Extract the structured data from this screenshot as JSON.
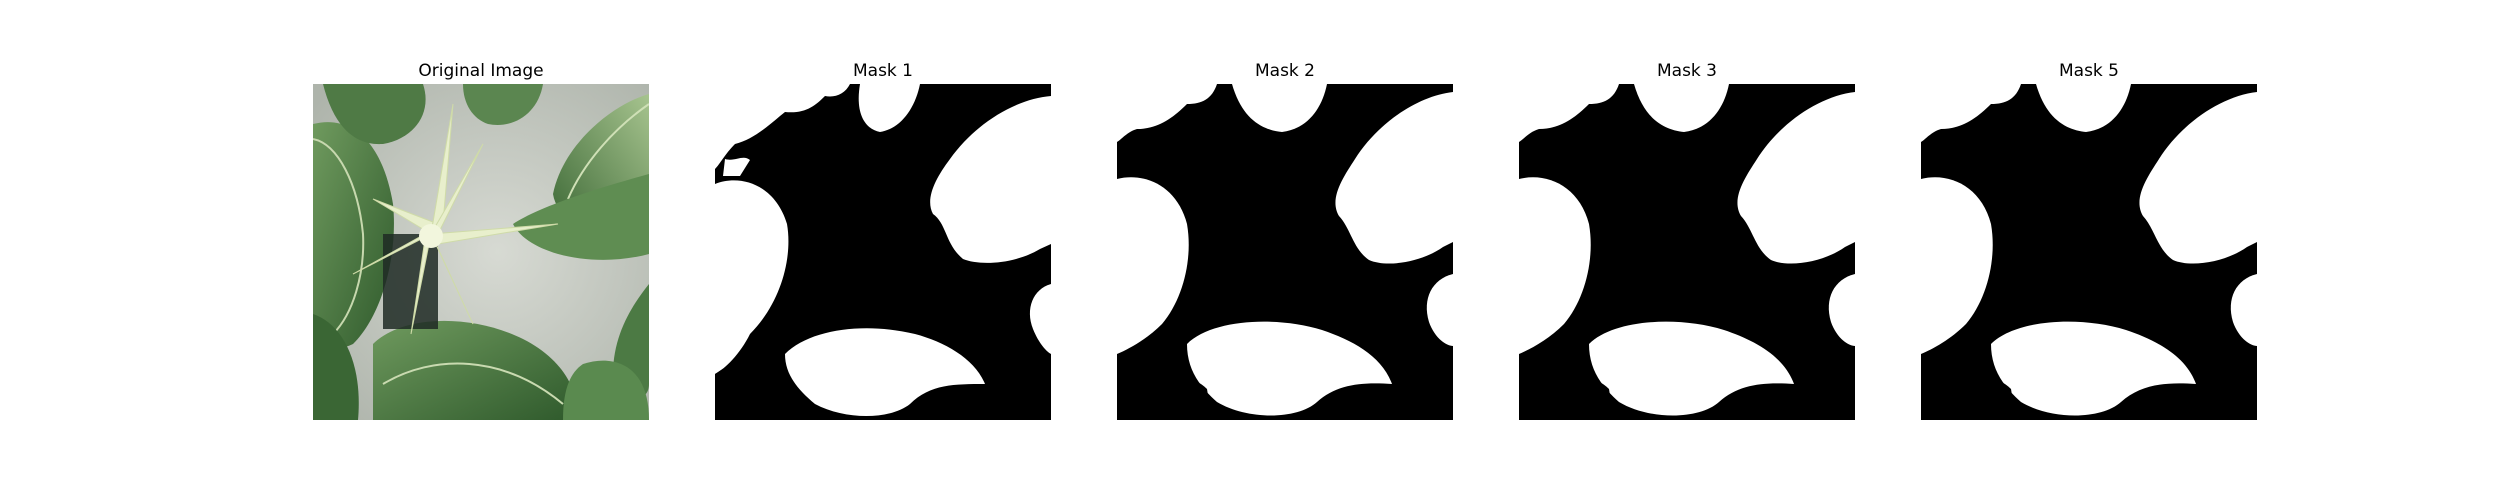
{
  "panels": [
    {
      "title": "Original Image"
    },
    {
      "title": "Mask 1"
    },
    {
      "title": "Mask 2"
    },
    {
      "title": "Mask 3"
    },
    {
      "title": "Mask 5"
    }
  ],
  "colors": {
    "background": "#ffffff",
    "mask_foreground": "#ffffff",
    "mask_background": "#000000",
    "leaf_dark": "#3f6b3a",
    "leaf_light": "#9fbf8a",
    "stem": "#e4ecc2",
    "wall": "#c9ccc6"
  }
}
